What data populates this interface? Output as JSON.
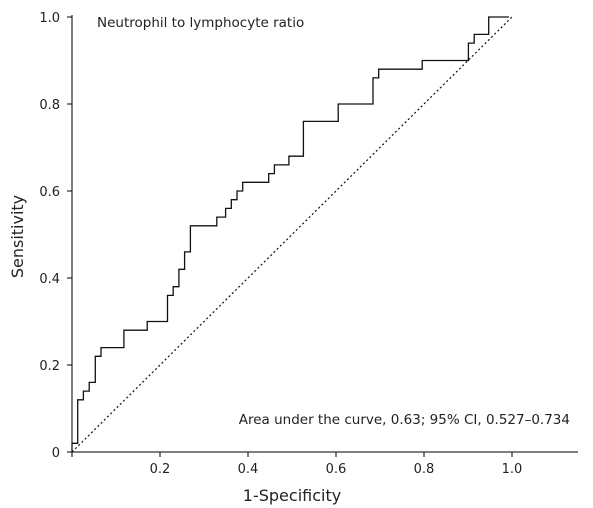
{
  "chart_data": {
    "type": "line",
    "title": "Neutrophil to lymphocyte ratio",
    "xlabel": "1-Specificity",
    "ylabel": "Sensitivity",
    "xlim": [
      0,
      1.15
    ],
    "ylim": [
      0,
      1.0
    ],
    "x_ticks": [
      0.2,
      0.4,
      0.6,
      0.8,
      1.0
    ],
    "x_tick_labels": [
      "0.2",
      "0.4",
      "0.6",
      "0.8",
      "1.0"
    ],
    "y_ticks": [
      0,
      0.2,
      0.4,
      0.6,
      0.8,
      1.0
    ],
    "y_tick_labels": [
      "0",
      "0.2",
      "0.4",
      "0.6",
      "0.8",
      "1.0"
    ],
    "annotation": "Area under the curve, 0.63; 95% CI, 0.527–0.734",
    "grid": false,
    "series": [
      {
        "style": "step",
        "points": [
          [
            0,
            0
          ],
          [
            0,
            0.02
          ],
          [
            0.013,
            0.02
          ],
          [
            0.013,
            0.12
          ],
          [
            0.026,
            0.12
          ],
          [
            0.026,
            0.14
          ],
          [
            0.039,
            0.14
          ],
          [
            0.039,
            0.16
          ],
          [
            0.053,
            0.16
          ],
          [
            0.053,
            0.22
          ],
          [
            0.066,
            0.22
          ],
          [
            0.066,
            0.24
          ],
          [
            0.118,
            0.24
          ],
          [
            0.118,
            0.28
          ],
          [
            0.171,
            0.28
          ],
          [
            0.171,
            0.3
          ],
          [
            0.217,
            0.3
          ],
          [
            0.217,
            0.36
          ],
          [
            0.23,
            0.36
          ],
          [
            0.23,
            0.38
          ],
          [
            0.243,
            0.38
          ],
          [
            0.243,
            0.42
          ],
          [
            0.256,
            0.42
          ],
          [
            0.256,
            0.46
          ],
          [
            0.269,
            0.46
          ],
          [
            0.269,
            0.52
          ],
          [
            0.329,
            0.52
          ],
          [
            0.329,
            0.54
          ],
          [
            0.349,
            0.54
          ],
          [
            0.349,
            0.56
          ],
          [
            0.362,
            0.56
          ],
          [
            0.362,
            0.58
          ],
          [
            0.375,
            0.58
          ],
          [
            0.375,
            0.6
          ],
          [
            0.388,
            0.6
          ],
          [
            0.388,
            0.62
          ],
          [
            0.447,
            0.62
          ],
          [
            0.447,
            0.64
          ],
          [
            0.46,
            0.64
          ],
          [
            0.46,
            0.66
          ],
          [
            0.493,
            0.66
          ],
          [
            0.493,
            0.68
          ],
          [
            0.526,
            0.68
          ],
          [
            0.526,
            0.76
          ],
          [
            0.605,
            0.76
          ],
          [
            0.605,
            0.8
          ],
          [
            0.684,
            0.8
          ],
          [
            0.684,
            0.86
          ],
          [
            0.697,
            0.86
          ],
          [
            0.697,
            0.88
          ],
          [
            0.796,
            0.88
          ],
          [
            0.796,
            0.9
          ],
          [
            0.901,
            0.9
          ],
          [
            0.901,
            0.94
          ],
          [
            0.914,
            0.94
          ],
          [
            0.914,
            0.96
          ],
          [
            0.947,
            0.96
          ],
          [
            0.947,
            1.0
          ],
          [
            0.993,
            1.0
          ]
        ]
      },
      {
        "style": "dotted-reference",
        "points": [
          [
            0,
            0
          ],
          [
            1.0,
            1.0
          ]
        ]
      }
    ]
  }
}
